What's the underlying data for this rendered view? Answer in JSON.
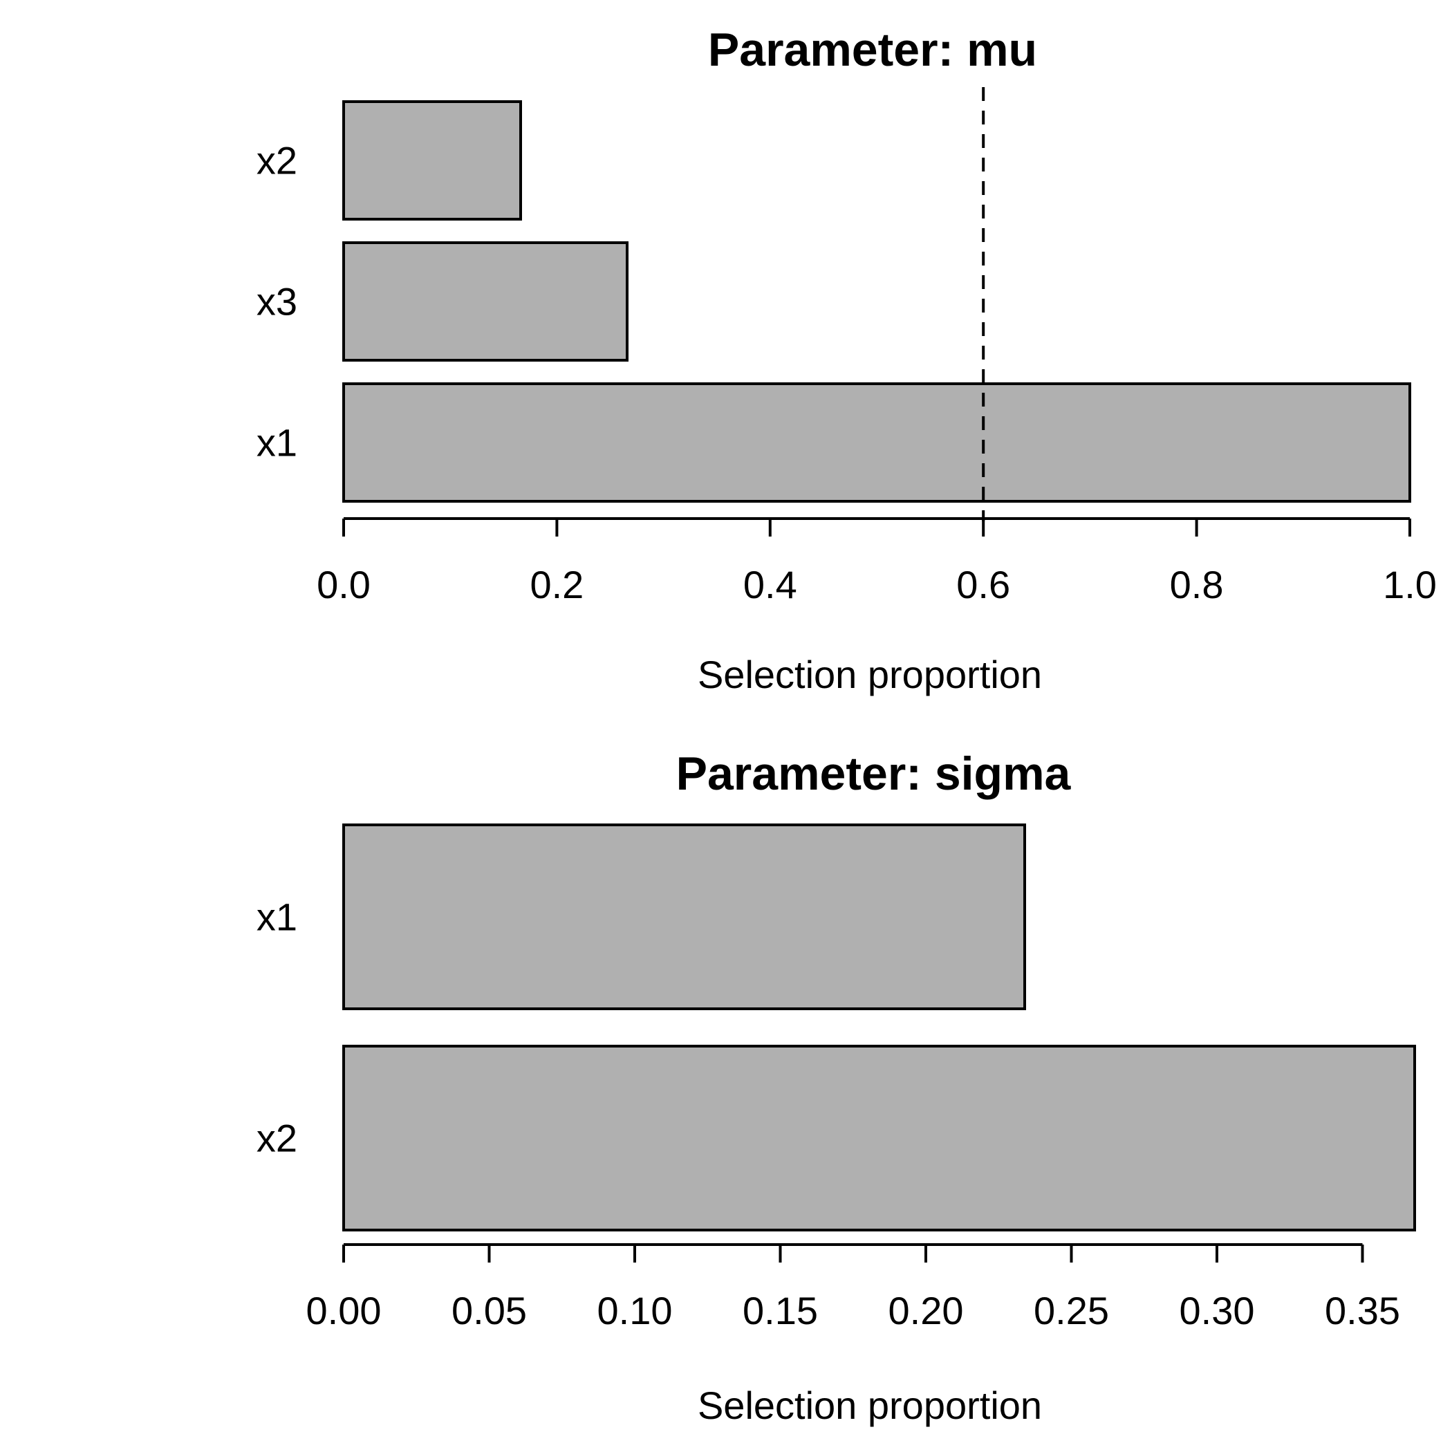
{
  "figure": {
    "background": "#ffffff",
    "text_color": "#000000"
  },
  "chart_data": [
    {
      "type": "bar",
      "orientation": "horizontal",
      "title": "Parameter: mu",
      "xlabel": "Selection proportion",
      "categories": [
        "x2",
        "x3",
        "x1"
      ],
      "values": [
        0.166,
        0.266,
        1.0
      ],
      "xlim": [
        0,
        1.0
      ],
      "xticks": [
        0,
        0.2,
        0.4,
        0.6,
        0.8,
        1.0
      ],
      "xtick_labels": [
        "0.0",
        "0.2",
        "0.4",
        "0.6",
        "0.8",
        "1.0"
      ],
      "threshold_line_x": 0.6,
      "threshold_line_style": "dashed",
      "bar_fill": "#b0b0b0",
      "bar_stroke": "#000000",
      "grid": false,
      "legend": false
    },
    {
      "type": "bar",
      "orientation": "horizontal",
      "title": "Parameter: sigma",
      "xlabel": "Selection proportion",
      "categories": [
        "x1",
        "x2"
      ],
      "values": [
        0.234,
        0.368
      ],
      "xlim": [
        0,
        0.368
      ],
      "xticks": [
        0,
        0.05,
        0.1,
        0.15,
        0.2,
        0.25,
        0.3,
        0.35
      ],
      "xtick_labels": [
        "0.00",
        "0.05",
        "0.10",
        "0.15",
        "0.20",
        "0.25",
        "0.30",
        "0.35"
      ],
      "threshold_line_x": null,
      "threshold_line_style": null,
      "bar_fill": "#b0b0b0",
      "bar_stroke": "#000000",
      "grid": false,
      "legend": false
    }
  ]
}
